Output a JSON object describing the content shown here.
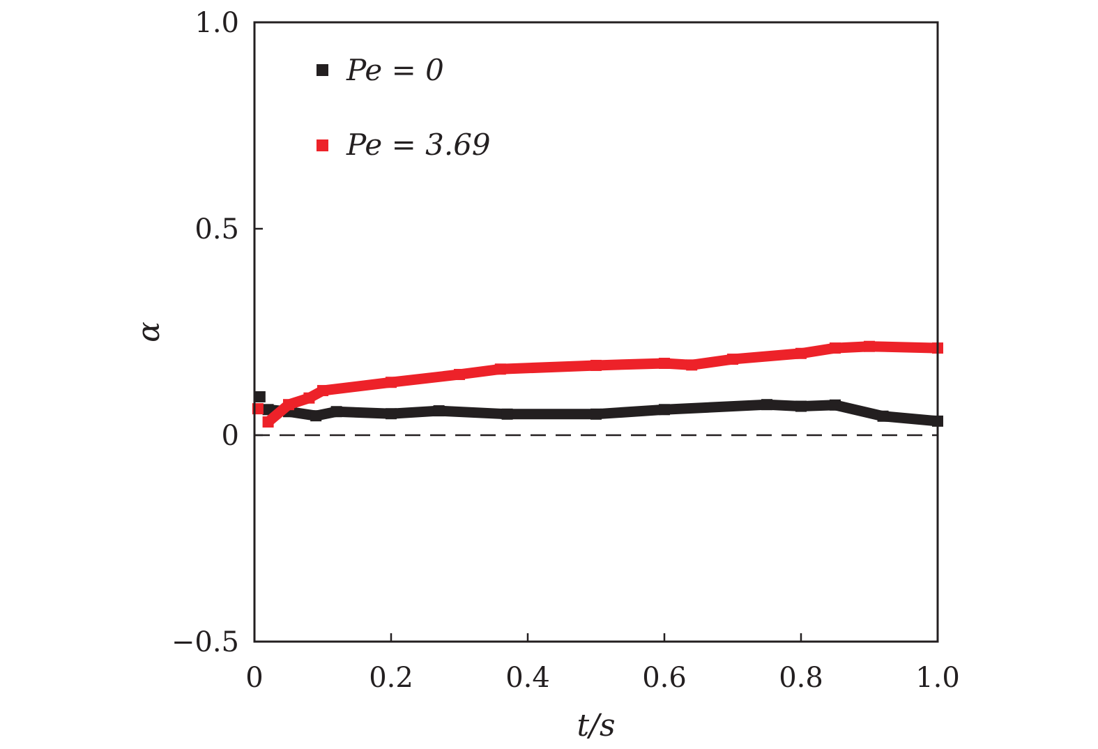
{
  "chart_data": {
    "type": "line",
    "title": "",
    "xlabel": "t/s",
    "ylabel": "α",
    "xlim": [
      0,
      1.0
    ],
    "ylim": [
      -0.5,
      1.0
    ],
    "xticks": [
      "0",
      "0.2",
      "0.4",
      "0.6",
      "0.8",
      "1.0"
    ],
    "xtick_values": [
      0,
      0.2,
      0.4,
      0.6,
      0.8,
      1.0
    ],
    "yticks": [
      "−0.5",
      "0",
      "0.5",
      "1.0"
    ],
    "ytick_values": [
      -0.5,
      0,
      0.5,
      1.0
    ],
    "reference_line": {
      "y": 0,
      "style": "dashed"
    },
    "legend_placement": "top-left",
    "series": [
      {
        "name": "Pe = 0",
        "color": "#231f20",
        "x": [
          0.008,
          0.02,
          0.05,
          0.09,
          0.12,
          0.2,
          0.27,
          0.37,
          0.5,
          0.6,
          0.75,
          0.8,
          0.85,
          0.92,
          1.0
        ],
        "y": [
          0.093,
          0.062,
          0.057,
          0.047,
          0.057,
          0.052,
          0.059,
          0.051,
          0.051,
          0.062,
          0.074,
          0.07,
          0.073,
          0.046,
          0.034
        ]
      },
      {
        "name": "Pe = 3.69",
        "color": "#ed2229",
        "x": [
          0.005,
          0.02,
          0.05,
          0.08,
          0.1,
          0.2,
          0.3,
          0.36,
          0.5,
          0.6,
          0.64,
          0.7,
          0.8,
          0.85,
          0.9,
          1.0
        ],
        "y": [
          0.064,
          0.032,
          0.074,
          0.09,
          0.108,
          0.128,
          0.147,
          0.16,
          0.169,
          0.174,
          0.17,
          0.184,
          0.198,
          0.211,
          0.215,
          0.211
        ]
      }
    ]
  }
}
